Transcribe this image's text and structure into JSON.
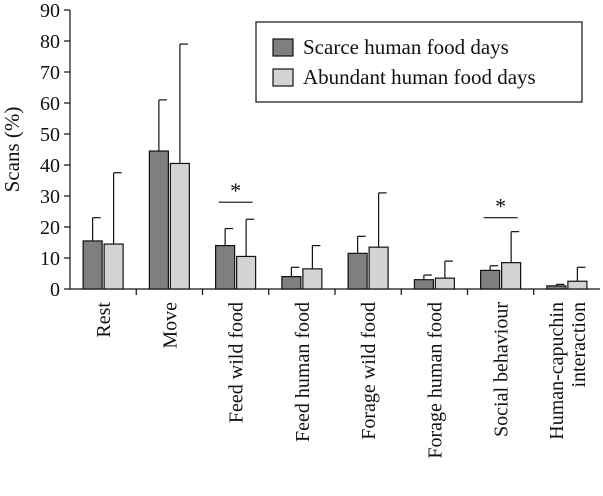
{
  "chart_data": {
    "type": "bar",
    "title": "",
    "xlabel": "",
    "ylabel": "Scans (%)",
    "ylim": [
      0,
      90
    ],
    "yticks": [
      0,
      10,
      20,
      30,
      40,
      50,
      60,
      70,
      80,
      90
    ],
    "grid": false,
    "legend_position": "top-right",
    "categories": [
      [
        "Rest"
      ],
      [
        "Move"
      ],
      [
        "Feed wild food"
      ],
      [
        "Feed human food"
      ],
      [
        "Forage wild food"
      ],
      [
        "Forage human food"
      ],
      [
        "Social behaviour"
      ],
      [
        "Human-capuchin",
        "interaction"
      ]
    ],
    "series": [
      {
        "name": "Scarce human food days",
        "color": "#7f7f7f",
        "values": [
          15.5,
          44.5,
          14,
          4,
          11.5,
          3,
          6,
          1
        ],
        "errors": [
          7.5,
          16.5,
          5.5,
          3,
          5.5,
          1.5,
          1.5,
          0.5
        ]
      },
      {
        "name": "Abundant human food days",
        "color": "#d3d3d3",
        "values": [
          14.5,
          40.5,
          10.5,
          6.5,
          13.5,
          3.5,
          8.5,
          2.5
        ],
        "errors": [
          23,
          38.5,
          12,
          7.5,
          17.5,
          5.5,
          10,
          4.5
        ]
      }
    ],
    "significance": [
      {
        "category_index": 2,
        "marker": "*",
        "y": 28
      },
      {
        "category_index": 6,
        "marker": "*",
        "y": 23
      }
    ]
  }
}
